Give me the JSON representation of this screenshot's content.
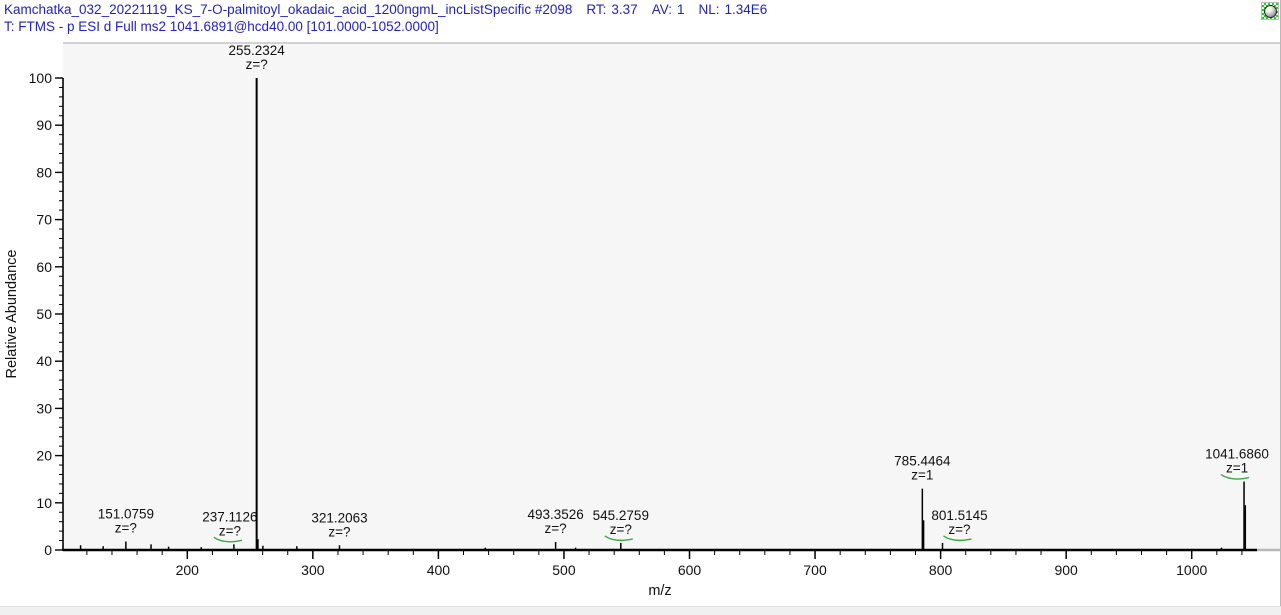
{
  "header": {
    "scan_title": "Kamchatka_032_20221119_KS_7-O-palmitoyl_okadaic_acid_1200ngmL_incListSpecific #2098",
    "rt": {
      "label": "RT:",
      "value": "3.37"
    },
    "av": {
      "label": "AV:",
      "value": "1"
    },
    "nl": {
      "label": "NL:",
      "value": "1.34E6"
    },
    "scan_filter": "T: FTMS - p ESI d Full ms2 1041.6891@hcd40.00 [101.0000-1052.0000]"
  },
  "icons": {
    "pushpin": "pushpin-icon"
  },
  "colors": {
    "header_text": "#2121c8",
    "peak_line": "#000000",
    "axis": "#000000",
    "connector_green": "#3aaa3a",
    "icon_green": "#17dd17",
    "plot_background": "#f6f6f6",
    "page_background": "#ffffff"
  },
  "chart_data": {
    "type": "bar",
    "subtype": "mass-spectrum",
    "title": "",
    "xlabel": "m/z",
    "ylabel": "Relative Abundance",
    "xlim": [
      101.0,
      1052.0
    ],
    "ylim": [
      0,
      100
    ],
    "grid": false,
    "x_major_ticks": [
      200,
      300,
      400,
      500,
      600,
      700,
      800,
      900,
      1000
    ],
    "x_minor_step": 20,
    "y_major_ticks": [
      0,
      10,
      20,
      30,
      40,
      50,
      60,
      70,
      80,
      90,
      100
    ],
    "y_minor_step": 2,
    "labeled_peaks": [
      {
        "mz": 151.0759,
        "intensity": 1.8,
        "label": "151.0759",
        "z": "z=?",
        "flag": false,
        "label_dx": 0
      },
      {
        "mz": 237.1126,
        "intensity": 1.2,
        "label": "237.1126",
        "z": "z=?",
        "flag": true,
        "label_dx": -4
      },
      {
        "mz": 255.2324,
        "intensity": 100,
        "label": "255.2324",
        "z": "z=?",
        "flag": false,
        "label_dx": 0
      },
      {
        "mz": 321.2063,
        "intensity": 1.0,
        "label": "321.2063",
        "z": "z=?",
        "flag": false,
        "label_dx": 0
      },
      {
        "mz": 493.3526,
        "intensity": 1.7,
        "label": "493.3526",
        "z": "z=?",
        "flag": false,
        "label_dx": 0
      },
      {
        "mz": 545.2759,
        "intensity": 1.5,
        "label": "545.2759",
        "z": "z=?",
        "flag": true,
        "label_dx": 0
      },
      {
        "mz": 785.4464,
        "intensity": 13.0,
        "label": "785.4464",
        "z": "z=1",
        "flag": false,
        "label_dx": 0
      },
      {
        "mz": 801.5145,
        "intensity": 1.5,
        "label": "801.5145",
        "z": "z=?",
        "flag": true,
        "label_dx": 17
      },
      {
        "mz": 1041.686,
        "intensity": 14.5,
        "label": "1041.6860",
        "z": "z=1",
        "flag": true,
        "label_dx": -7
      }
    ],
    "unlabeled_peaks": [
      {
        "mz": 115.0,
        "intensity": 1.0
      },
      {
        "mz": 133.0,
        "intensity": 0.8
      },
      {
        "mz": 171.1,
        "intensity": 1.2
      },
      {
        "mz": 185.1,
        "intensity": 0.7
      },
      {
        "mz": 211.1,
        "intensity": 0.6
      },
      {
        "mz": 256.24,
        "intensity": 2.3
      },
      {
        "mz": 260.2,
        "intensity": 0.9
      },
      {
        "mz": 287.2,
        "intensity": 0.8
      },
      {
        "mz": 437.3,
        "intensity": 0.5
      },
      {
        "mz": 509.3,
        "intensity": 0.5
      },
      {
        "mz": 786.45,
        "intensity": 6.3
      },
      {
        "mz": 1023.7,
        "intensity": 0.5
      },
      {
        "mz": 1042.69,
        "intensity": 9.5
      }
    ]
  }
}
